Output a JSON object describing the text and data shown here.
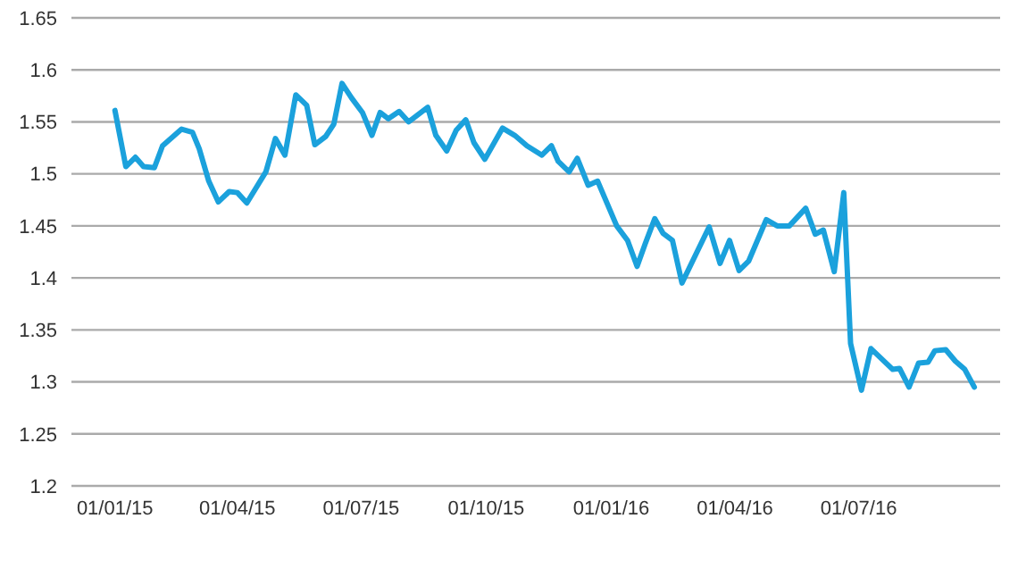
{
  "chart_data": {
    "type": "line",
    "x": [
      "2015-01-01",
      "2015-01-09",
      "2015-01-16",
      "2015-01-22",
      "2015-01-30",
      "2015-02-05",
      "2015-02-19",
      "2015-02-27",
      "2015-03-04",
      "2015-03-11",
      "2015-03-18",
      "2015-03-26",
      "2015-04-01",
      "2015-04-08",
      "2015-04-22",
      "2015-04-29",
      "2015-05-06",
      "2015-05-14",
      "2015-05-22",
      "2015-05-28",
      "2015-06-05",
      "2015-06-11",
      "2015-06-17",
      "2015-06-24",
      "2015-07-02",
      "2015-07-09",
      "2015-07-15",
      "2015-07-21",
      "2015-07-29",
      "2015-08-05",
      "2015-08-19",
      "2015-08-25",
      "2015-09-02",
      "2015-09-09",
      "2015-09-16",
      "2015-09-22",
      "2015-09-30",
      "2015-10-13",
      "2015-10-22",
      "2015-10-31",
      "2015-11-11",
      "2015-11-18",
      "2015-11-23",
      "2015-12-01",
      "2015-12-07",
      "2015-12-15",
      "2015-12-22",
      "2016-01-05",
      "2016-01-13",
      "2016-01-20",
      "2016-01-26",
      "2016-02-02",
      "2016-02-08",
      "2016-02-15",
      "2016-02-22",
      "2016-03-13",
      "2016-03-21",
      "2016-03-28",
      "2016-04-04",
      "2016-04-11",
      "2016-04-24",
      "2016-05-02",
      "2016-05-11",
      "2016-05-23",
      "2016-05-30",
      "2016-06-05",
      "2016-06-13",
      "2016-06-20",
      "2016-06-25",
      "2016-07-03",
      "2016-07-10",
      "2016-07-26",
      "2016-07-31",
      "2016-08-07",
      "2016-08-14",
      "2016-08-21",
      "2016-08-26",
      "2016-09-03",
      "2016-09-10",
      "2016-09-17",
      "2016-09-24"
    ],
    "series": [
      {
        "color": "#1ba1dc",
        "values": [
          1.561,
          1.507,
          1.516,
          1.507,
          1.506,
          1.527,
          1.543,
          1.54,
          1.524,
          1.493,
          1.473,
          1.483,
          1.482,
          1.472,
          1.502,
          1.534,
          1.518,
          1.576,
          1.566,
          1.528,
          1.536,
          1.548,
          1.587,
          1.573,
          1.559,
          1.537,
          1.559,
          1.553,
          1.56,
          1.55,
          1.564,
          1.537,
          1.522,
          1.542,
          1.552,
          1.53,
          1.514,
          1.544,
          1.537,
          1.527,
          1.518,
          1.527,
          1.512,
          1.502,
          1.515,
          1.489,
          1.493,
          1.45,
          1.436,
          1.411,
          1.433,
          1.457,
          1.443,
          1.436,
          1.395,
          1.449,
          1.414,
          1.436,
          1.407,
          1.416,
          1.456,
          1.45,
          1.45,
          1.467,
          1.442,
          1.446,
          1.406,
          1.482,
          1.337,
          1.292,
          1.332,
          1.312,
          1.313,
          1.295,
          1.318,
          1.319,
          1.33,
          1.331,
          1.32,
          1.312,
          1.295
        ]
      }
    ],
    "xlim": [
      "2014-11-30",
      "2016-10-13"
    ],
    "xticks": [
      {
        "value": "2015-01-01",
        "label": "01/01/15"
      },
      {
        "value": "2015-04-01",
        "label": "01/04/15"
      },
      {
        "value": "2015-07-01",
        "label": "01/07/15"
      },
      {
        "value": "2015-10-01",
        "label": "01/10/15"
      },
      {
        "value": "2016-01-01",
        "label": "01/01/16"
      },
      {
        "value": "2016-04-01",
        "label": "01/04/16"
      },
      {
        "value": "2016-07-01",
        "label": "01/07/16"
      }
    ],
    "ylim": [
      1.2,
      1.65
    ],
    "yticks": [
      1.2,
      1.25,
      1.3,
      1.35,
      1.4,
      1.45,
      1.5,
      1.55,
      1.6,
      1.65
    ],
    "grid": "y",
    "marker": "none",
    "line_style": "solid",
    "legend": false
  }
}
